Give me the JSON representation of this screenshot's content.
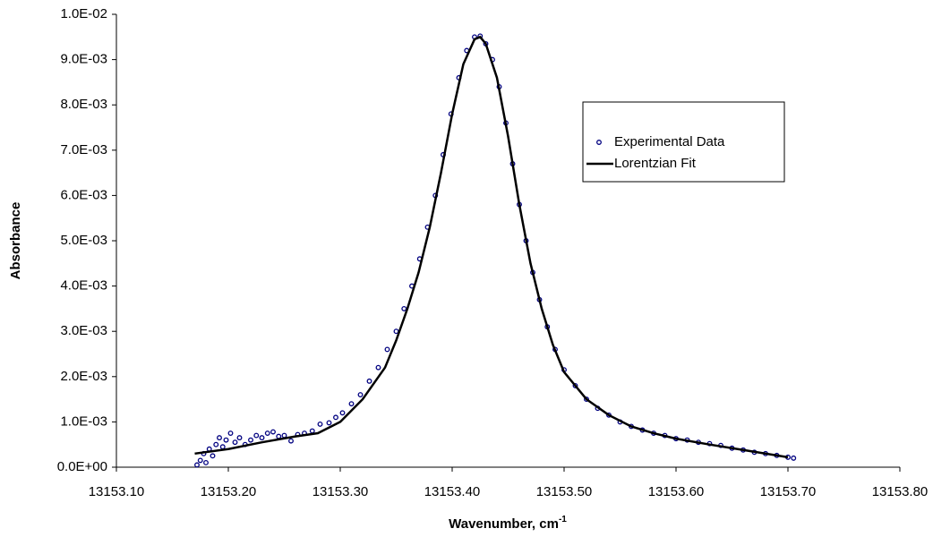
{
  "chart_data": {
    "type": "scatter",
    "x_label": {
      "text": "Wavenumber, cm",
      "superscript": "-1"
    },
    "y_label": "Absorbance",
    "xlim": [
      13153.1,
      13153.8
    ],
    "xticks": [
      {
        "value": 13153.1,
        "label": "13153.10"
      },
      {
        "value": 13153.2,
        "label": "13153.20"
      },
      {
        "value": 13153.3,
        "label": "13153.30"
      },
      {
        "value": 13153.4,
        "label": "13153.40"
      },
      {
        "value": 13153.5,
        "label": "13153.50"
      },
      {
        "value": 13153.6,
        "label": "13153.60"
      },
      {
        "value": 13153.7,
        "label": "13153.70"
      },
      {
        "value": 13153.8,
        "label": "13153.80"
      }
    ],
    "ylim": [
      0,
      0.01
    ],
    "yticks": [
      {
        "value": 0,
        "label": "0.0E+00"
      },
      {
        "value": 0.001,
        "label": "1.0E-03"
      },
      {
        "value": 0.002,
        "label": "2.0E-03"
      },
      {
        "value": 0.003,
        "label": "3.0E-03"
      },
      {
        "value": 0.004,
        "label": "4.0E-03"
      },
      {
        "value": 0.005,
        "label": "5.0E-03"
      },
      {
        "value": 0.006,
        "label": "6.0E-03"
      },
      {
        "value": 0.007,
        "label": "7.0E-03"
      },
      {
        "value": 0.008,
        "label": "8.0E-03"
      },
      {
        "value": 0.009,
        "label": "9.0E-03"
      },
      {
        "value": 0.01,
        "label": "1.0E-02"
      }
    ],
    "grid": false,
    "legend": "right",
    "series": [
      {
        "name": "Experimental Data",
        "type": "scatter",
        "color": "#000080",
        "x": [
          13153.172,
          13153.175,
          13153.178,
          13153.18,
          13153.183,
          13153.186,
          13153.189,
          13153.192,
          13153.195,
          13153.198,
          13153.202,
          13153.206,
          13153.21,
          13153.215,
          13153.22,
          13153.225,
          13153.23,
          13153.235,
          13153.24,
          13153.245,
          13153.25,
          13153.256,
          13153.262,
          13153.268,
          13153.275,
          13153.282,
          13153.29,
          13153.296,
          13153.302,
          13153.31,
          13153.318,
          13153.326,
          13153.334,
          13153.342,
          13153.35,
          13153.357,
          13153.364,
          13153.371,
          13153.378,
          13153.385,
          13153.392,
          13153.399,
          13153.406,
          13153.413,
          13153.42,
          13153.425,
          13153.43,
          13153.436,
          13153.442,
          13153.448,
          13153.454,
          13153.46,
          13153.466,
          13153.472,
          13153.478,
          13153.485,
          13153.492,
          13153.5,
          13153.51,
          13153.52,
          13153.53,
          13153.54,
          13153.55,
          13153.56,
          13153.57,
          13153.58,
          13153.59,
          13153.6,
          13153.61,
          13153.62,
          13153.63,
          13153.64,
          13153.65,
          13153.66,
          13153.67,
          13153.68,
          13153.69,
          13153.7,
          13153.705
        ],
        "values": [
          5e-05,
          0.00015,
          0.0003,
          0.0001,
          0.0004,
          0.00025,
          0.0005,
          0.00065,
          0.00045,
          0.0006,
          0.00075,
          0.00055,
          0.00065,
          0.0005,
          0.0006,
          0.0007,
          0.00065,
          0.00075,
          0.00078,
          0.00068,
          0.0007,
          0.00058,
          0.00072,
          0.00075,
          0.0008,
          0.00095,
          0.00098,
          0.0011,
          0.0012,
          0.0014,
          0.0016,
          0.0019,
          0.0022,
          0.0026,
          0.003,
          0.0035,
          0.004,
          0.0046,
          0.0053,
          0.006,
          0.0069,
          0.0078,
          0.0086,
          0.0092,
          0.0095,
          0.00952,
          0.00935,
          0.009,
          0.0084,
          0.0076,
          0.0067,
          0.0058,
          0.005,
          0.0043,
          0.0037,
          0.0031,
          0.0026,
          0.00215,
          0.0018,
          0.0015,
          0.0013,
          0.00115,
          0.001,
          0.0009,
          0.00082,
          0.00075,
          0.0007,
          0.00063,
          0.0006,
          0.00055,
          0.00052,
          0.00048,
          0.00042,
          0.00038,
          0.00033,
          0.0003,
          0.00026,
          0.00022,
          0.0002
        ]
      },
      {
        "name": "Lorentzian Fit",
        "type": "line",
        "color": "#000000",
        "x": [
          13153.17,
          13153.2,
          13153.23,
          13153.26,
          13153.28,
          13153.3,
          13153.32,
          13153.34,
          13153.35,
          13153.36,
          13153.37,
          13153.38,
          13153.39,
          13153.4,
          13153.41,
          13153.42,
          13153.425,
          13153.43,
          13153.44,
          13153.45,
          13153.46,
          13153.47,
          13153.48,
          13153.49,
          13153.5,
          13153.52,
          13153.54,
          13153.56,
          13153.58,
          13153.6,
          13153.63,
          13153.66,
          13153.7
        ],
        "values": [
          0.0003,
          0.0004,
          0.00055,
          0.00068,
          0.00075,
          0.001,
          0.0015,
          0.0022,
          0.0028,
          0.0035,
          0.0043,
          0.0053,
          0.0065,
          0.0078,
          0.0089,
          0.00945,
          0.0095,
          0.00935,
          0.0086,
          0.0073,
          0.0058,
          0.0045,
          0.0035,
          0.0027,
          0.0021,
          0.0015,
          0.00115,
          0.0009,
          0.00075,
          0.00063,
          0.0005,
          0.00038,
          0.00022
        ]
      }
    ]
  }
}
